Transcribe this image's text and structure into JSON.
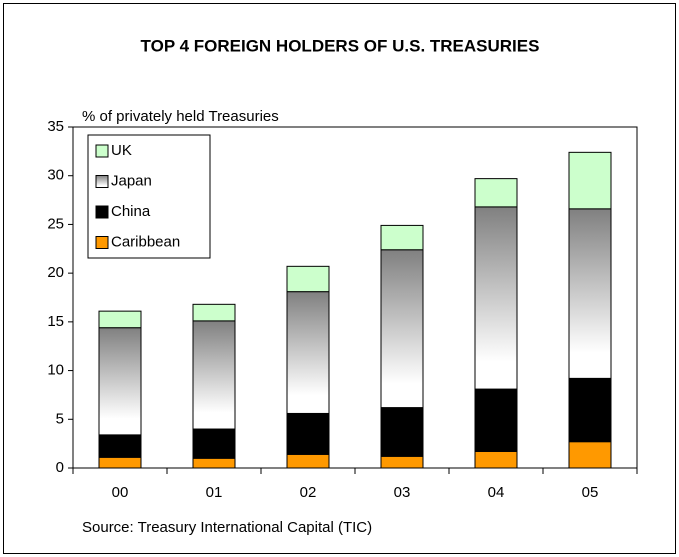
{
  "chart_data": {
    "type": "stacked_bar",
    "title": "TOP 4 FOREIGN HOLDERS OF U.S. TREASURIES",
    "y_label": "% of privately held Treasuries",
    "source": "Source: Treasury International Capital (TIC)",
    "categories": [
      "00",
      "01",
      "02",
      "03",
      "04",
      "05"
    ],
    "series": [
      {
        "name": "Caribbean",
        "color": "#ff9900",
        "values": [
          1.1,
          1.0,
          1.4,
          1.2,
          1.7,
          2.7
        ]
      },
      {
        "name": "China",
        "color": "#000000",
        "values": [
          2.3,
          3.0,
          4.2,
          5.0,
          6.4,
          6.5
        ]
      },
      {
        "name": "Japan",
        "color": "#808080",
        "values": [
          11.0,
          11.1,
          12.5,
          16.2,
          18.7,
          17.4
        ]
      },
      {
        "name": "UK",
        "color": "#ccffcc",
        "values": [
          1.7,
          1.7,
          2.6,
          2.5,
          2.9,
          5.8
        ]
      }
    ],
    "ylim": [
      0,
      35
    ],
    "yticks": [
      0,
      5,
      10,
      15,
      20,
      25,
      30,
      35
    ],
    "legend": "upper left",
    "grid": false
  }
}
